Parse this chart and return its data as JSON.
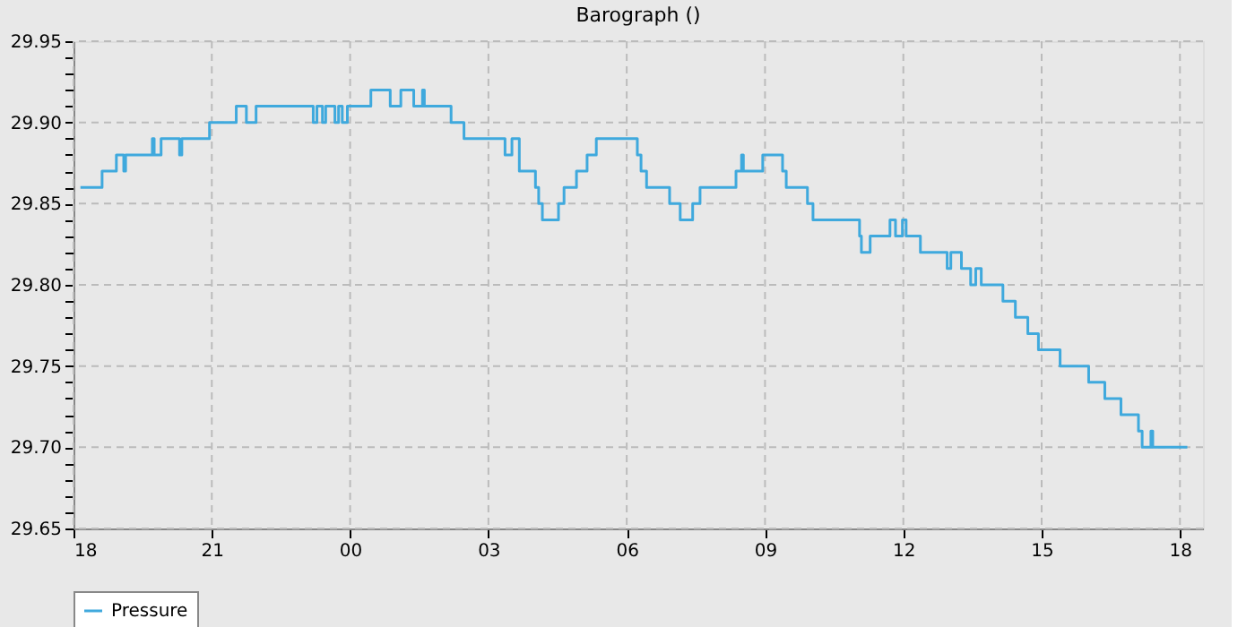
{
  "chart_data": {
    "type": "step",
    "title": "Barograph ()",
    "legend": "bottom",
    "grid": true,
    "line_style": "solid",
    "marker": "none",
    "xlim": [
      18,
      42.5
    ],
    "xticks": [
      {
        "value": 18,
        "label": "18"
      },
      {
        "value": 21,
        "label": "21"
      },
      {
        "value": 24,
        "label": "00"
      },
      {
        "value": 27,
        "label": "03"
      },
      {
        "value": 30,
        "label": "06"
      },
      {
        "value": 33,
        "label": "09"
      },
      {
        "value": 36,
        "label": "12"
      },
      {
        "value": 39,
        "label": "15"
      },
      {
        "value": 42,
        "label": "18"
      }
    ],
    "ylim": [
      29.65,
      29.95
    ],
    "yticks": [
      {
        "value": 29.65,
        "label": "29.65"
      },
      {
        "value": 29.66,
        "label": null
      },
      {
        "value": 29.67,
        "label": null
      },
      {
        "value": 29.68,
        "label": null
      },
      {
        "value": 29.69,
        "label": null
      },
      {
        "value": 29.7,
        "label": "29.70"
      },
      {
        "value": 29.71,
        "label": null
      },
      {
        "value": 29.72,
        "label": null
      },
      {
        "value": 29.73,
        "label": null
      },
      {
        "value": 29.74,
        "label": null
      },
      {
        "value": 29.75,
        "label": "29.75"
      },
      {
        "value": 29.76,
        "label": null
      },
      {
        "value": 29.77,
        "label": null
      },
      {
        "value": 29.78,
        "label": null
      },
      {
        "value": 29.79,
        "label": null
      },
      {
        "value": 29.8,
        "label": "29.80"
      },
      {
        "value": 29.81,
        "label": null
      },
      {
        "value": 29.82,
        "label": null
      },
      {
        "value": 29.83,
        "label": null
      },
      {
        "value": 29.84,
        "label": null
      },
      {
        "value": 29.85,
        "label": "29.85"
      },
      {
        "value": 29.86,
        "label": null
      },
      {
        "value": 29.87,
        "label": null
      },
      {
        "value": 29.88,
        "label": null
      },
      {
        "value": 29.89,
        "label": null
      },
      {
        "value": 29.9,
        "label": "29.90"
      },
      {
        "value": 29.91,
        "label": null
      },
      {
        "value": 29.92,
        "label": null
      },
      {
        "value": 29.93,
        "label": null
      },
      {
        "value": 29.94,
        "label": null
      },
      {
        "value": 29.95,
        "label": "29.95"
      }
    ],
    "series": [
      {
        "name": "Pressure",
        "color": "#3fa9dd",
        "x": [
          18.15,
          18.62,
          18.93,
          19.09,
          19.13,
          19.71,
          19.75,
          19.9,
          20.3,
          20.35,
          20.95,
          21.53,
          21.75,
          21.96,
          23.2,
          23.28,
          23.4,
          23.47,
          23.67,
          23.75,
          23.83,
          23.94,
          24.45,
          24.87,
          25.1,
          25.38,
          25.57,
          25.61,
          26.19,
          26.47,
          27.36,
          27.51,
          27.67,
          28.02,
          28.09,
          28.17,
          28.52,
          28.64,
          28.91,
          29.14,
          29.34,
          30.23,
          30.31,
          30.43,
          30.93,
          31.16,
          31.43,
          31.59,
          32.37,
          32.49,
          32.53,
          32.95,
          33.38,
          33.46,
          33.92,
          34.04,
          35.05,
          35.09,
          35.28,
          35.71,
          35.83,
          35.98,
          36.06,
          36.37,
          36.95,
          37.03,
          37.26,
          37.46,
          37.57,
          37.69,
          38.16,
          38.43,
          38.7,
          38.93,
          39.4,
          40.02,
          40.37,
          40.72,
          41.1,
          41.18,
          41.37,
          41.41,
          42.16
        ],
        "values": [
          29.86,
          29.87,
          29.88,
          29.87,
          29.88,
          29.89,
          29.88,
          29.89,
          29.88,
          29.89,
          29.9,
          29.91,
          29.9,
          29.91,
          29.9,
          29.91,
          29.9,
          29.91,
          29.9,
          29.91,
          29.9,
          29.91,
          29.92,
          29.91,
          29.92,
          29.91,
          29.92,
          29.91,
          29.9,
          29.89,
          29.88,
          29.89,
          29.87,
          29.86,
          29.85,
          29.84,
          29.85,
          29.86,
          29.87,
          29.88,
          29.89,
          29.88,
          29.87,
          29.86,
          29.85,
          29.84,
          29.85,
          29.86,
          29.87,
          29.88,
          29.87,
          29.88,
          29.87,
          29.86,
          29.85,
          29.84,
          29.83,
          29.82,
          29.83,
          29.84,
          29.83,
          29.84,
          29.83,
          29.82,
          29.81,
          29.82,
          29.81,
          29.8,
          29.81,
          29.8,
          29.79,
          29.78,
          29.77,
          29.76,
          29.75,
          29.74,
          29.73,
          29.72,
          29.71,
          29.7,
          29.71,
          29.7,
          29.7
        ]
      }
    ]
  }
}
